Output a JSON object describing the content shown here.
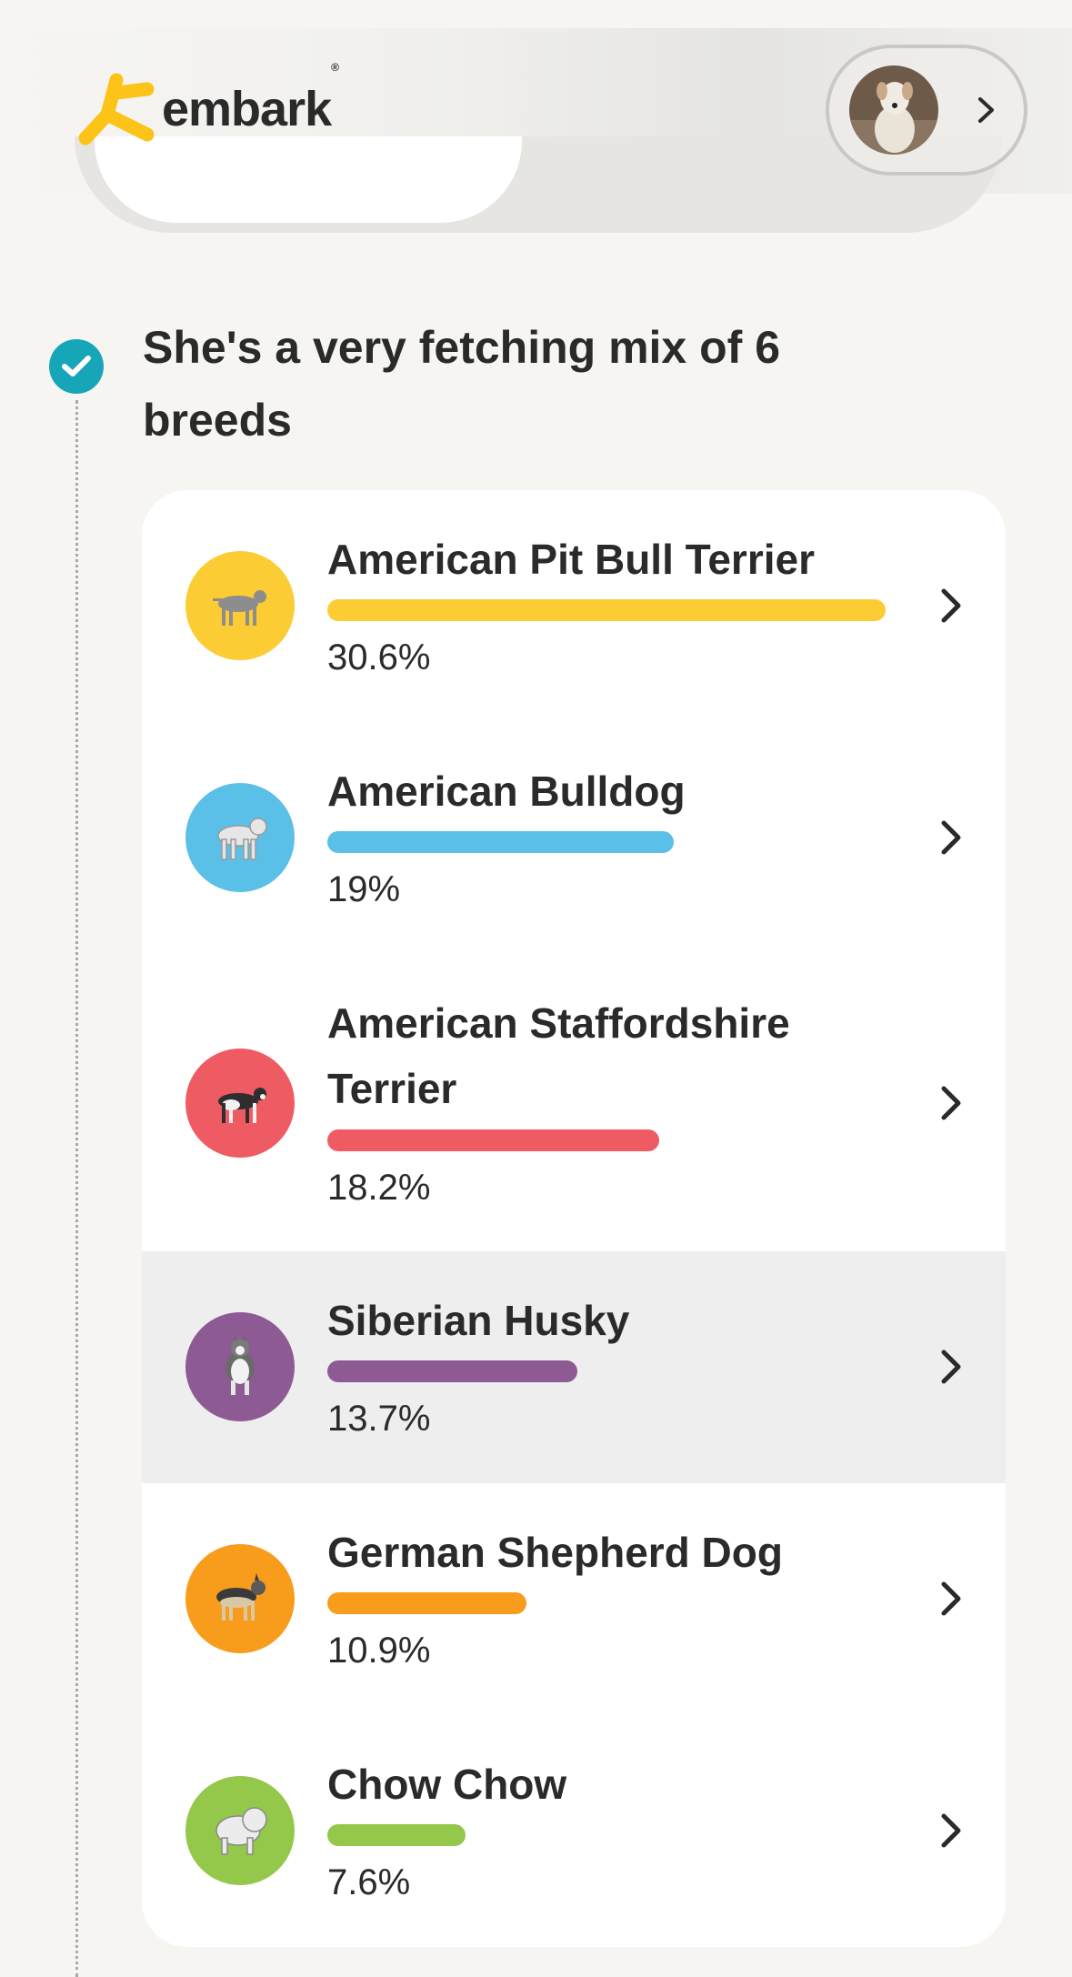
{
  "header": {
    "logo_text": "embark",
    "logo_registered": "®",
    "accent_color": "#fcc419"
  },
  "headline": "She's a very fetching mix of 6 breeds",
  "breeds": [
    {
      "name": "American Pit Bull Terrier",
      "percent_label": "30.6%",
      "percent": 30.6,
      "color": "#fccc34"
    },
    {
      "name": "American Bulldog",
      "percent_label": "19%",
      "percent": 19,
      "color": "#5bc0e8"
    },
    {
      "name": "American Staffordshire Terrier",
      "percent_label": "18.2%",
      "percent": 18.2,
      "color": "#ef5b63"
    },
    {
      "name": "Siberian Husky",
      "percent_label": "13.7%",
      "percent": 13.7,
      "color": "#8e5a94"
    },
    {
      "name": "German Shepherd Dog",
      "percent_label": "10.9%",
      "percent": 10.9,
      "color": "#f89c1c"
    },
    {
      "name": "Chow Chow",
      "percent_label": "7.6%",
      "percent": 7.6,
      "color": "#94c84a"
    }
  ]
}
